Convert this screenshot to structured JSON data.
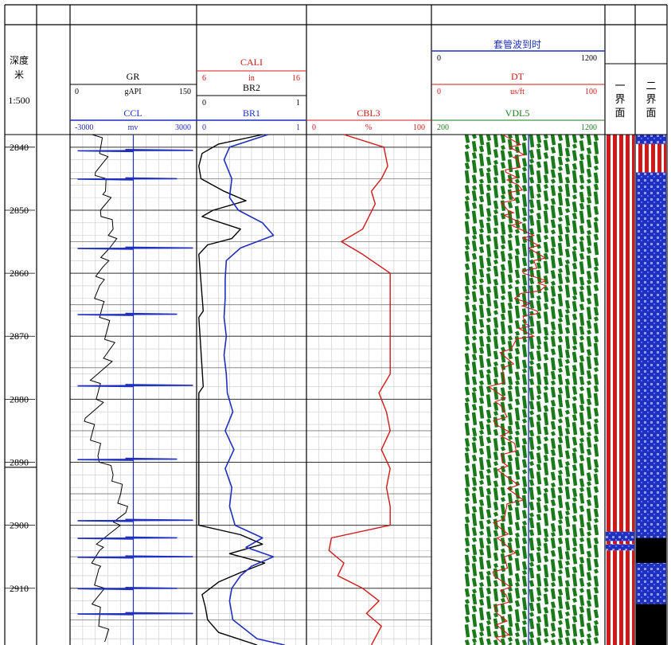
{
  "header": {
    "depth_title": "深度",
    "depth_unit": "米",
    "scale": "1:500",
    "boundary1": "一界面",
    "boundary2": "二界面"
  },
  "colors": {
    "black": "#000000",
    "blue": "#1f2fbf",
    "red": "#d01818",
    "green": "#1a7a1a",
    "grid": "#c8c8c8"
  },
  "tracks": {
    "gr": {
      "name": "GR",
      "unit": "gAPI",
      "min": "0",
      "max": "150",
      "color": "#000000"
    },
    "ccl": {
      "name": "CCL",
      "unit": "mv",
      "min": "-3000",
      "max": "3000",
      "color": "#1f2fbf"
    },
    "cali": {
      "name": "CALI",
      "unit": "in",
      "min": "6",
      "max": "16",
      "color": "#d01818"
    },
    "br2": {
      "name": "BR2",
      "min": "0",
      "max": "1",
      "color": "#000000"
    },
    "br1": {
      "name": "BR1",
      "min": "0",
      "max": "1",
      "color": "#1f2fbf"
    },
    "cbl3": {
      "name": "CBL3",
      "unit": "%",
      "min": "0",
      "max": "100",
      "color": "#d01818"
    },
    "casing": {
      "name": "套管波到时",
      "min": "0",
      "max": "1200",
      "color": "#1f2fbf"
    },
    "dt": {
      "name": "DT",
      "unit": "us/ft",
      "min": "0",
      "max": "100",
      "color": "#d01818"
    },
    "vdl": {
      "name": "VDL5",
      "min": "200",
      "max": "1200",
      "color": "#1a7a1a"
    }
  },
  "chart_data": {
    "type": "line",
    "depth_range": [
      2838,
      2919
    ],
    "depth_ticks": [
      2840,
      2850,
      2860,
      2870,
      2880,
      2890,
      2900,
      2910
    ],
    "depth_tick_labels": [
      "2840",
      "2850",
      "2860",
      "2870",
      "2880",
      "2890",
      "2900",
      "2910"
    ],
    "depth_unit": "m",
    "series": [
      {
        "name": "GR",
        "unit": "gAPI",
        "range": [
          0,
          150
        ],
        "depth": [
          2838,
          2841,
          2844,
          2847,
          2850,
          2853,
          2856,
          2859,
          2862,
          2865,
          2868,
          2871,
          2874,
          2877,
          2880,
          2883,
          2886,
          2889,
          2892,
          2895,
          2898,
          2901,
          2904,
          2907,
          2910,
          2913,
          2916,
          2919
        ],
        "values": [
          32,
          40,
          34,
          45,
          38,
          52,
          47,
          38,
          33,
          36,
          42,
          48,
          44,
          30,
          36,
          22,
          28,
          35,
          52,
          60,
          65,
          48,
          32,
          30,
          36,
          30,
          40,
          45
        ]
      },
      {
        "name": "CCL",
        "unit": "mv",
        "range": [
          -3000,
          3000
        ],
        "depth": [
          2838,
          2845,
          2856,
          2866.5,
          2877.8,
          2889.5,
          2899.2,
          2902,
          2910,
          2914,
          2919
        ],
        "values": [
          40,
          0,
          20,
          0,
          10,
          0,
          0,
          30,
          0,
          20,
          0
        ],
        "spikes": [
          2840.5,
          2845,
          2856,
          2866.5,
          2877.8,
          2889.5,
          2899.2,
          2902,
          2905,
          2910,
          2914
        ]
      },
      {
        "name": "BR2",
        "range": [
          0,
          1
        ],
        "depth": [
          2838,
          2839.5,
          2841,
          2843,
          2845,
          2847,
          2848.5,
          2850,
          2851,
          2853,
          2854.5,
          2855.5,
          2857,
          2866,
          2867,
          2878,
          2879,
          2900,
          2901.5,
          2903,
          2904.5,
          2906,
          2907.5,
          2909,
          2911,
          2913,
          2915,
          2917,
          2919
        ],
        "values": [
          0.6,
          0.2,
          0.05,
          0.02,
          0.04,
          0.25,
          0.45,
          0.15,
          0.05,
          0.4,
          0.32,
          0.1,
          0.02,
          0.06,
          0.02,
          0.06,
          0.02,
          0.02,
          0.4,
          0.6,
          0.3,
          0.62,
          0.4,
          0.2,
          0.05,
          0.08,
          0.1,
          0.2,
          0.55
        ]
      },
      {
        "name": "BR1",
        "range": [
          0,
          1
        ],
        "depth": [
          2838,
          2840,
          2842,
          2845,
          2848,
          2850,
          2852,
          2854,
          2856,
          2858,
          2861,
          2864,
          2867,
          2870,
          2873,
          2876,
          2879,
          2882,
          2885,
          2888,
          2891,
          2894,
          2897,
          2900,
          2902,
          2903.5,
          2905,
          2906.5,
          2908,
          2910,
          2912,
          2915,
          2918,
          2919
        ],
        "values": [
          0.65,
          0.3,
          0.25,
          0.32,
          0.3,
          0.38,
          0.6,
          0.7,
          0.4,
          0.27,
          0.26,
          0.26,
          0.25,
          0.27,
          0.25,
          0.27,
          0.28,
          0.33,
          0.26,
          0.34,
          0.26,
          0.32,
          0.3,
          0.35,
          0.6,
          0.45,
          0.7,
          0.5,
          0.4,
          0.32,
          0.3,
          0.33,
          0.55,
          0.8
        ]
      },
      {
        "name": "CBL3",
        "unit": "%",
        "range": [
          0,
          100
        ],
        "depth": [
          2838,
          2840,
          2843,
          2845,
          2847,
          2849,
          2851,
          2853,
          2855,
          2857,
          2860,
          2864,
          2868,
          2872,
          2876,
          2879,
          2882,
          2885,
          2888,
          2891,
          2894,
          2897,
          2900,
          2902,
          2904,
          2906,
          2908,
          2910,
          2912,
          2914,
          2916,
          2919
        ],
        "values": [
          30,
          62,
          65,
          60,
          52,
          55,
          50,
          45,
          28,
          45,
          67,
          67,
          67,
          67,
          67,
          58,
          64,
          67,
          60,
          67,
          64,
          67,
          67,
          20,
          18,
          30,
          25,
          45,
          58,
          48,
          60,
          52
        ]
      },
      {
        "name": "DT",
        "unit": "us/ft",
        "range": [
          0,
          100
        ],
        "depth": [
          2838,
          2840,
          2842,
          2844,
          2846,
          2848,
          2850,
          2852,
          2854,
          2856,
          2858,
          2860,
          2862,
          2864,
          2866,
          2868,
          2870,
          2872,
          2875,
          2878,
          2881,
          2884,
          2887,
          2890,
          2893,
          2896,
          2899,
          2902,
          2905,
          2908,
          2911,
          2914,
          2917,
          2919
        ],
        "values": [
          45,
          48,
          52,
          44,
          50,
          46,
          42,
          49,
          55,
          60,
          62,
          55,
          67,
          48,
          60,
          52,
          56,
          42,
          45,
          36,
          42,
          38,
          48,
          40,
          45,
          50,
          38,
          42,
          45,
          38,
          44,
          38,
          42,
          40
        ]
      },
      {
        "name": "套管波到时",
        "range": [
          0,
          1200
        ],
        "depth": [
          2838,
          2919
        ],
        "values": [
          760,
          760
        ]
      }
    ],
    "boundary_1": {
      "label": "一界面",
      "pattern": "red-white stripes",
      "segments": [
        [
          2838,
          2901,
          "stripes"
        ],
        [
          2901,
          2902.5,
          "blue-dots"
        ],
        [
          2902.5,
          2903,
          "stripes"
        ],
        [
          2903,
          2904,
          "blue-dots"
        ],
        [
          2904,
          2919,
          "stripes"
        ]
      ]
    },
    "boundary_2": {
      "label": "二界面",
      "pattern": "mixed",
      "segments": [
        [
          2838,
          2839.5,
          "blue-dots"
        ],
        [
          2839.5,
          2844,
          "stripes"
        ],
        [
          2844,
          2902,
          "blue-dots"
        ],
        [
          2902,
          2906,
          "black"
        ],
        [
          2906,
          2912.5,
          "blue-dots"
        ],
        [
          2912.5,
          2919,
          "black"
        ]
      ]
    }
  }
}
